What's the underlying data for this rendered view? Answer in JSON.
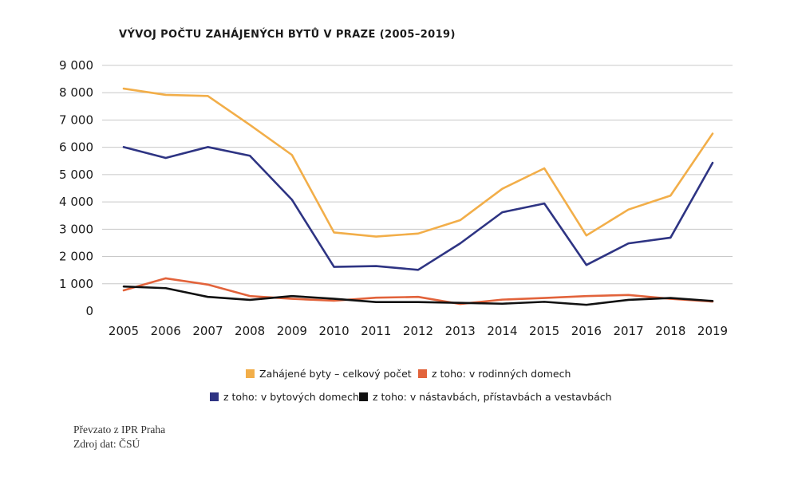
{
  "chart_data": {
    "type": "line",
    "title": "VÝVOJ POČTU ZAHÁJENÝCH BYTŮ V PRAZE (2005–2019)",
    "xlabel": "",
    "ylabel": "",
    "ylim": [
      0,
      9000
    ],
    "yticks": [
      0,
      1000,
      2000,
      3000,
      4000,
      5000,
      6000,
      7000,
      8000,
      9000
    ],
    "ytick_labels": [
      "0",
      "1 000",
      "2 000",
      "3 000",
      "4 000",
      "5 000",
      "6 000",
      "7 000",
      "8 000",
      "9 000"
    ],
    "grid": true,
    "legend_position": "bottom",
    "categories": [
      "2005",
      "2006",
      "2007",
      "2008",
      "2009",
      "2010",
      "2011",
      "2012",
      "2013",
      "2014",
      "2015",
      "2016",
      "2017",
      "2018",
      "2019"
    ],
    "series": [
      {
        "name": "Zahájené byty – celkový počet",
        "color": "#F2AE49",
        "values": [
          8150,
          7920,
          7880,
          6820,
          5720,
          2880,
          2730,
          2840,
          3330,
          4480,
          5230,
          2770,
          3720,
          4230,
          6500
        ]
      },
      {
        "name": "z toho: v rodinných domech",
        "color": "#E2633B",
        "values": [
          760,
          1200,
          970,
          550,
          450,
          380,
          490,
          520,
          260,
          420,
          480,
          550,
          590,
          450,
          350
        ]
      },
      {
        "name": "z toho: v bytových domech",
        "color": "#2E3483",
        "values": [
          6010,
          5610,
          6010,
          5690,
          4080,
          1620,
          1650,
          1510,
          2480,
          3620,
          3940,
          1690,
          2480,
          2690,
          5430
        ]
      },
      {
        "name": "z toho: v nástavbách, přístavbách a vestavbách",
        "color": "#111111",
        "values": [
          900,
          840,
          520,
          410,
          550,
          450,
          330,
          330,
          300,
          270,
          340,
          230,
          410,
          480,
          370
        ]
      }
    ]
  },
  "credits": {
    "line1": "Převzato z IPR Praha",
    "line2": "Zdroj dat: ČSÚ"
  }
}
